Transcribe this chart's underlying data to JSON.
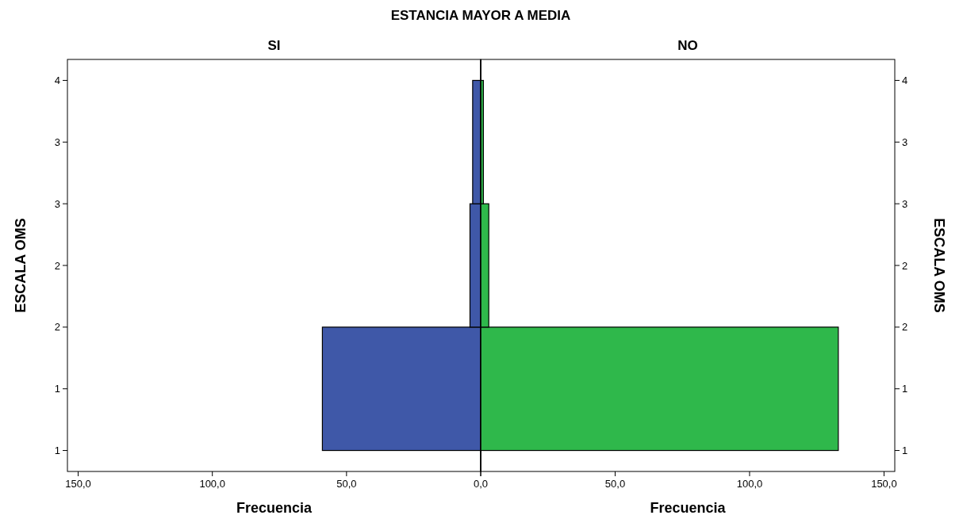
{
  "chart_data": [
    {
      "type": "histogram",
      "orientation": "horizontal",
      "title": "ESTANCIA MAYOR A MEDIA",
      "subtitle": "SI",
      "xlabel": "Frecuencia",
      "ylabel": "ESCALA OMS",
      "bins": [
        1,
        2,
        3,
        4
      ],
      "values": [
        59,
        4,
        3
      ],
      "color": "#3f58a8",
      "xlim": [
        154,
        0
      ],
      "xticks": [
        {
          "value": 150,
          "label": "150,0"
        },
        {
          "value": 100,
          "label": "100,0"
        },
        {
          "value": 50,
          "label": "50,0"
        },
        {
          "value": 0,
          "label": null
        }
      ],
      "ylim": [
        0.83,
        4.17
      ],
      "yticks": [
        {
          "value": 1,
          "label": "1"
        },
        {
          "value": 1.5,
          "label": "1"
        },
        {
          "value": 2,
          "label": "2"
        },
        {
          "value": 2.5,
          "label": "2"
        },
        {
          "value": 3,
          "label": "3"
        },
        {
          "value": 3.5,
          "label": "3"
        },
        {
          "value": 4,
          "label": "4"
        }
      ],
      "grid": false
    },
    {
      "type": "histogram",
      "orientation": "horizontal",
      "subtitle": "NO",
      "xlabel": "Frecuencia",
      "ylabel": "ESCALA OMS",
      "bins": [
        1,
        2,
        3,
        4
      ],
      "values": [
        133,
        3,
        1
      ],
      "color": "#2fb84b",
      "xlim": [
        0,
        154
      ],
      "xticks": [
        {
          "value": 0,
          "label": "0,0"
        },
        {
          "value": 50,
          "label": "50,0"
        },
        {
          "value": 100,
          "label": "100,0"
        },
        {
          "value": 150,
          "label": "150,0"
        }
      ],
      "ylim": [
        0.83,
        4.17
      ],
      "yticks": [
        {
          "value": 1,
          "label": "1"
        },
        {
          "value": 1.5,
          "label": "1"
        },
        {
          "value": 2,
          "label": "2"
        },
        {
          "value": 2.5,
          "label": "2"
        },
        {
          "value": 3,
          "label": "3"
        },
        {
          "value": 3.5,
          "label": "3"
        },
        {
          "value": 4,
          "label": "4"
        }
      ],
      "grid": false
    }
  ]
}
